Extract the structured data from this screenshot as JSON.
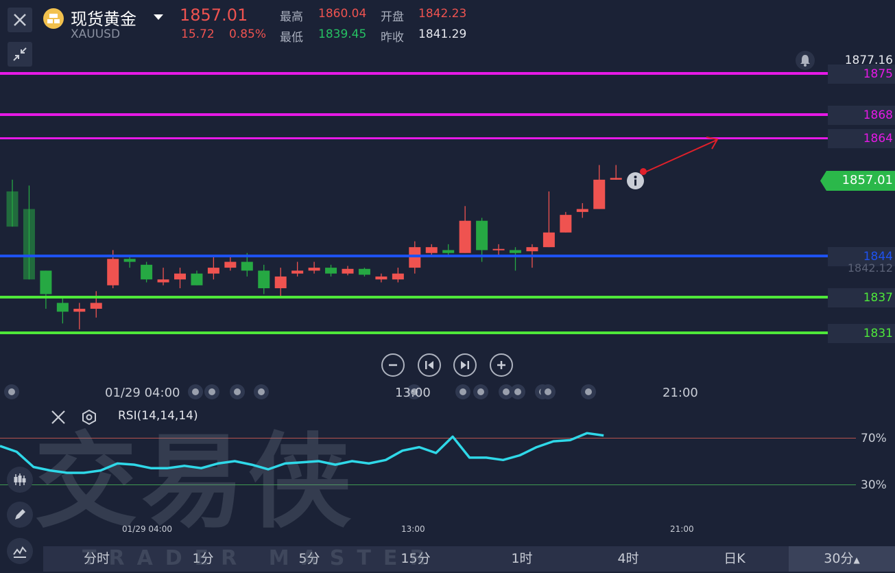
{
  "header": {
    "title": "现货黄金",
    "symbol": "XAUUSD",
    "last_price": "1857.01",
    "change": "15.72",
    "change_pct": "0.85%",
    "quotes": [
      {
        "label": "最高",
        "value": "1860.04",
        "color": "#ef5350"
      },
      {
        "label": "开盘",
        "value": "1842.23",
        "color": "#ef5350"
      },
      {
        "label": "最低",
        "value": "1839.45",
        "color": "#26c163"
      },
      {
        "label": "昨收",
        "value": "1841.29",
        "color": "#e6e8ee"
      }
    ]
  },
  "price_axis": {
    "top_price": "1877.16",
    "current_price": "1857.01",
    "prev_close_faint": "1842.12"
  },
  "levels": [
    {
      "label": "1875",
      "color": "#e619e6"
    },
    {
      "label": "1868",
      "color": "#e619e6"
    },
    {
      "label": "1864",
      "color": "#e619e6"
    },
    {
      "label": "1844",
      "color": "#1e52f0"
    },
    {
      "label": "1837",
      "color": "#4ee83a"
    },
    {
      "label": "1831",
      "color": "#4ee83a"
    }
  ],
  "time_axis": {
    "labels": [
      "01/29 04:00",
      "13:00",
      "21:00"
    ]
  },
  "rsi": {
    "label": "RSI(14,14,14)",
    "level_70": "70%",
    "level_30": "30%",
    "values": [
      63,
      58,
      45,
      42,
      40,
      40,
      42,
      48,
      47,
      44,
      44,
      46,
      44,
      48,
      50,
      47,
      43,
      48,
      49,
      50,
      47,
      50,
      48,
      51,
      59,
      62,
      57,
      71,
      53,
      53,
      51,
      55,
      62,
      67,
      68,
      74,
      72
    ]
  },
  "watermark": {
    "text": "交易侠",
    "sub": "TRADER MASTER"
  },
  "timeframes": [
    "分时",
    "1分",
    "5分",
    "15分",
    "1时",
    "4时",
    "日K",
    "30分"
  ],
  "active_timeframe": "30分",
  "colors": {
    "up": "#ef5350",
    "down": "#26a843",
    "rsi_line": "#2fd8e8",
    "background": "#1b2236"
  },
  "chart_data": {
    "type": "candlestick",
    "ylim": [
      1828,
      1879
    ],
    "candles": [
      {
        "o": 1855.0,
        "c": 1849.0,
        "h": 1857.0,
        "l": 1849.0
      },
      {
        "o": 1852.0,
        "c": 1840.0,
        "h": 1856.0,
        "l": 1840.0
      },
      {
        "o": 1841.5,
        "c": 1837.5,
        "h": 1841.5,
        "l": 1835.0
      },
      {
        "o": 1836.0,
        "c": 1834.5,
        "h": 1837.0,
        "l": 1832.5
      },
      {
        "o": 1834.5,
        "c": 1835.0,
        "h": 1836.0,
        "l": 1831.5
      },
      {
        "o": 1835.0,
        "c": 1836.0,
        "h": 1838.0,
        "l": 1833.5
      },
      {
        "o": 1839.0,
        "c": 1843.5,
        "h": 1845.0,
        "l": 1838.5
      },
      {
        "o": 1843.5,
        "c": 1843.0,
        "h": 1844.0,
        "l": 1842.0
      },
      {
        "o": 1842.5,
        "c": 1840.0,
        "h": 1843.0,
        "l": 1839.5
      },
      {
        "o": 1839.5,
        "c": 1840.0,
        "h": 1842.0,
        "l": 1839.0
      },
      {
        "o": 1840.0,
        "c": 1841.0,
        "h": 1842.0,
        "l": 1838.5
      },
      {
        "o": 1841.0,
        "c": 1839.0,
        "h": 1841.5,
        "l": 1839.0
      },
      {
        "o": 1841.0,
        "c": 1842.0,
        "h": 1844.0,
        "l": 1840.0
      },
      {
        "o": 1842.0,
        "c": 1843.0,
        "h": 1844.0,
        "l": 1841.5
      },
      {
        "o": 1843.0,
        "c": 1841.5,
        "h": 1844.5,
        "l": 1840.5
      },
      {
        "o": 1841.5,
        "c": 1838.5,
        "h": 1842.5,
        "l": 1837.5
      },
      {
        "o": 1838.5,
        "c": 1840.5,
        "h": 1842.0,
        "l": 1837.0
      },
      {
        "o": 1841.0,
        "c": 1841.5,
        "h": 1843.0,
        "l": 1840.5
      },
      {
        "o": 1841.5,
        "c": 1842.0,
        "h": 1843.0,
        "l": 1841.0
      },
      {
        "o": 1842.0,
        "c": 1841.0,
        "h": 1842.5,
        "l": 1840.5
      },
      {
        "o": 1841.0,
        "c": 1841.8,
        "h": 1842.3,
        "l": 1840.7
      },
      {
        "o": 1841.8,
        "c": 1840.8,
        "h": 1842.0,
        "l": 1840.5
      },
      {
        "o": 1840.0,
        "c": 1840.5,
        "h": 1841.0,
        "l": 1839.5
      },
      {
        "o": 1840.0,
        "c": 1841.0,
        "h": 1842.0,
        "l": 1839.5
      },
      {
        "o": 1842.0,
        "c": 1845.5,
        "h": 1846.5,
        "l": 1841.0
      },
      {
        "o": 1844.5,
        "c": 1845.5,
        "h": 1846.0,
        "l": 1844.0
      },
      {
        "o": 1845.0,
        "c": 1844.5,
        "h": 1846.0,
        "l": 1844.0
      },
      {
        "o": 1844.5,
        "c": 1850.0,
        "h": 1852.5,
        "l": 1844.5
      },
      {
        "o": 1850.0,
        "c": 1845.0,
        "h": 1850.5,
        "l": 1843.0
      },
      {
        "o": 1845.0,
        "c": 1845.2,
        "h": 1846.0,
        "l": 1844.0
      },
      {
        "o": 1845.0,
        "c": 1844.5,
        "h": 1845.5,
        "l": 1841.5
      },
      {
        "o": 1844.8,
        "c": 1845.5,
        "h": 1846.0,
        "l": 1842.0
      },
      {
        "o": 1845.5,
        "c": 1848.0,
        "h": 1855.0,
        "l": 1845.5
      },
      {
        "o": 1848.0,
        "c": 1851.0,
        "h": 1851.5,
        "l": 1848.0
      },
      {
        "o": 1851.5,
        "c": 1852.0,
        "h": 1853.0,
        "l": 1850.5
      },
      {
        "o": 1852.0,
        "c": 1857.0,
        "h": 1859.5,
        "l": 1852.0
      },
      {
        "o": 1857.0,
        "c": 1857.3,
        "h": 1859.5,
        "l": 1857.0
      }
    ]
  }
}
